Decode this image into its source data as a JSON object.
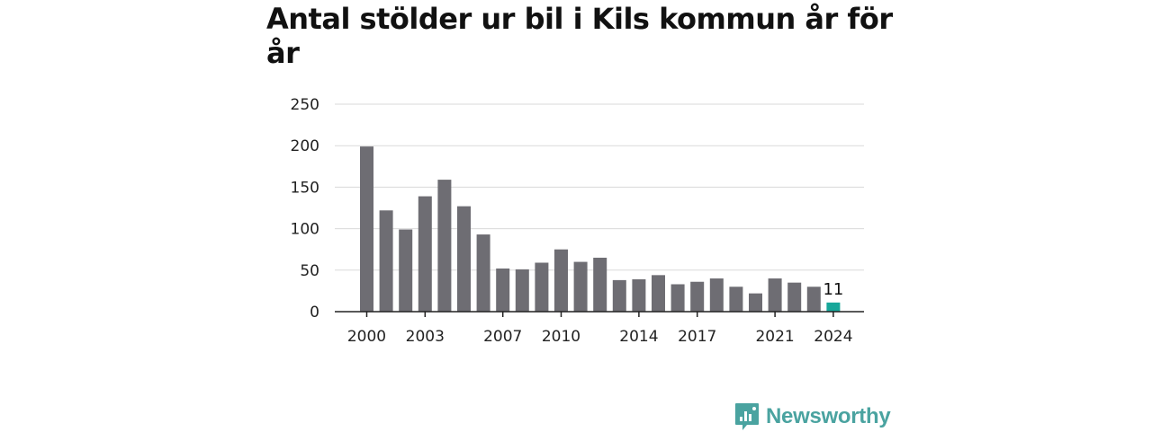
{
  "chart_data": {
    "type": "bar",
    "title": "Antal stölder ur bil i Kils kommun år för år",
    "xlabel": "",
    "ylabel": "",
    "ylim": [
      0,
      250
    ],
    "yticks": [
      "0",
      "50",
      "100",
      "150",
      "200",
      "250"
    ],
    "xtick_labels": [
      "2000",
      "2003",
      "2007",
      "2010",
      "2014",
      "2017",
      "2021",
      "2024"
    ],
    "grid": true,
    "categories": [
      "2000",
      "2001",
      "2002",
      "2003",
      "2004",
      "2005",
      "2006",
      "2007",
      "2008",
      "2009",
      "2010",
      "2011",
      "2012",
      "2013",
      "2014",
      "2015",
      "2016",
      "2017",
      "2018",
      "2019",
      "2020",
      "2021",
      "2022",
      "2023",
      "2024"
    ],
    "values": [
      199,
      122,
      99,
      139,
      159,
      127,
      93,
      52,
      51,
      59,
      75,
      60,
      65,
      38,
      39,
      44,
      33,
      36,
      40,
      30,
      22,
      40,
      35,
      30,
      11
    ],
    "bar_color": "#6e6d73",
    "highlight_color": "#17a79a",
    "highlight_index": 24,
    "highlight_label": "11"
  },
  "brand": {
    "name": "Newsworthy",
    "logo_icon": "bar-chart-speech-bubble-icon",
    "color": "#4aa3a0"
  }
}
